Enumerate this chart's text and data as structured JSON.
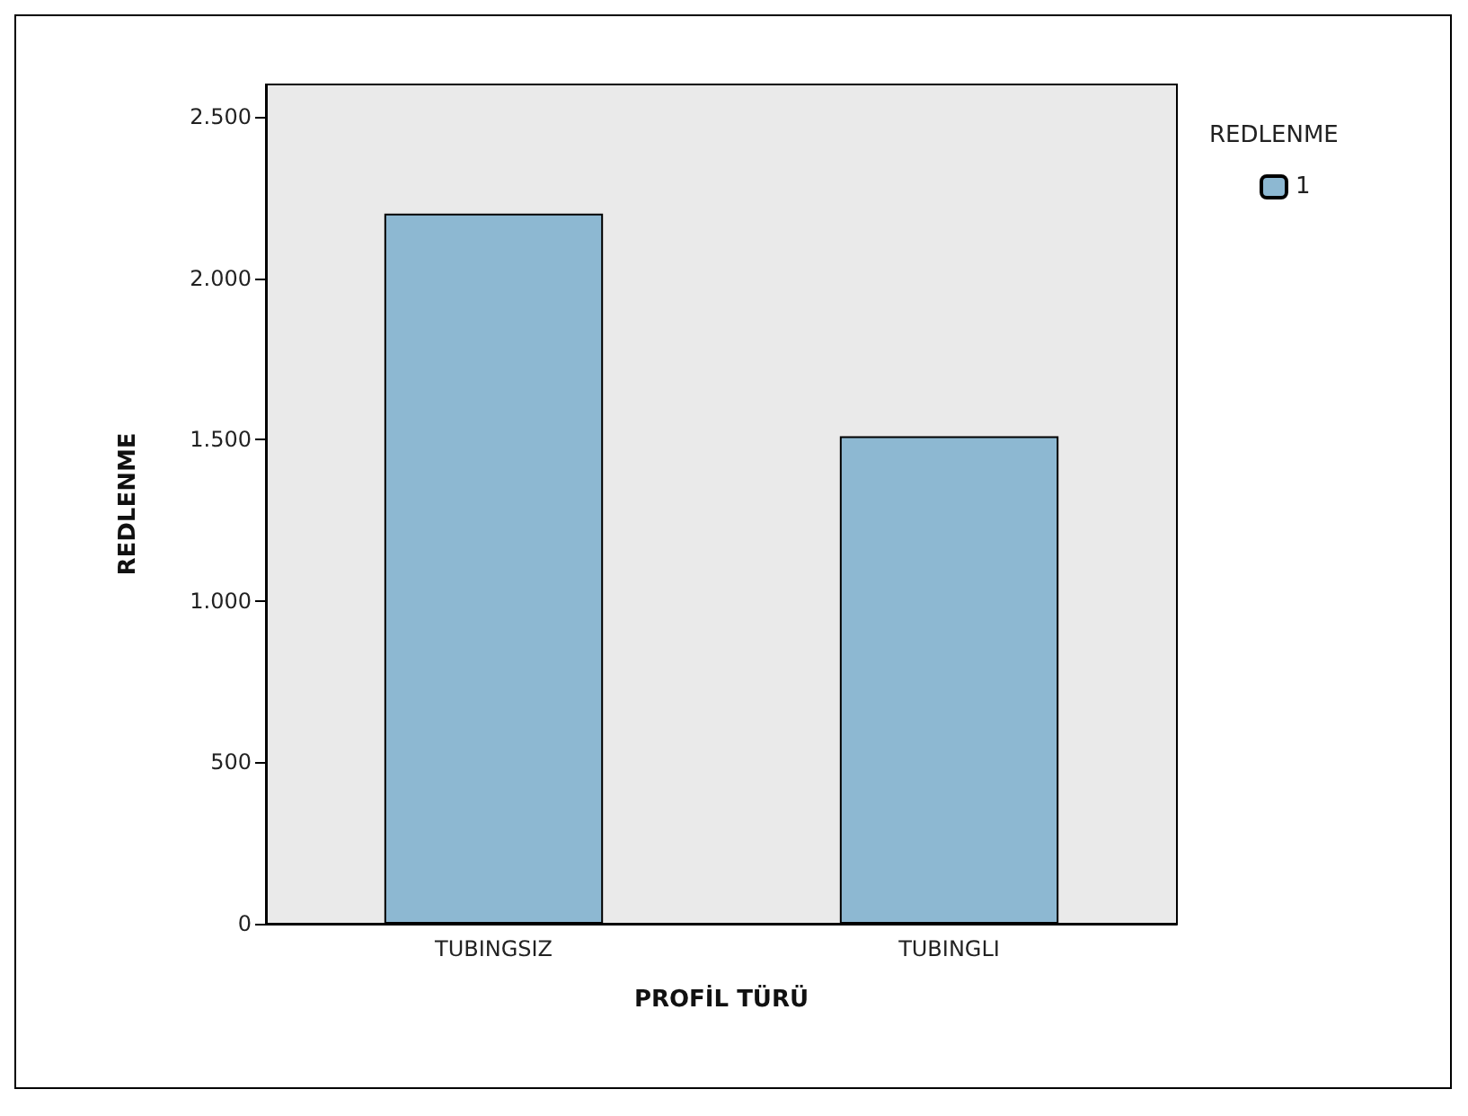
{
  "chart_data": {
    "type": "bar",
    "xlabel": "PROFİL TÜRÜ",
    "ylabel": "REDLENME",
    "legend_title": "REDLENME",
    "categories": [
      "TUBINGSIZ",
      "TUBINGLI"
    ],
    "series": [
      {
        "name": "1",
        "color": "#8db8d2",
        "values": [
          2200,
          1510
        ]
      }
    ],
    "ylim": [
      0,
      2600
    ],
    "yticks": [
      {
        "value": 0,
        "label": "0"
      },
      {
        "value": 500,
        "label": "500"
      },
      {
        "value": 1000,
        "label": "1.000"
      },
      {
        "value": 1500,
        "label": "1.500"
      },
      {
        "value": 2000,
        "label": "2.000"
      },
      {
        "value": 2500,
        "label": "2.500"
      }
    ],
    "grid": false,
    "legend": "top right"
  }
}
